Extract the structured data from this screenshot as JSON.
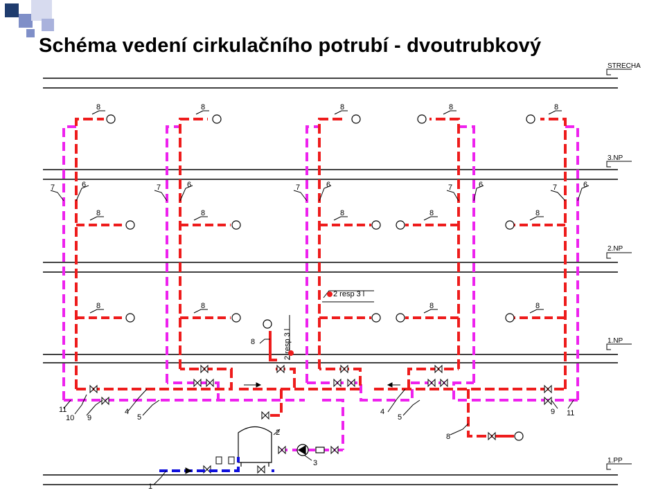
{
  "title": "Schéma vedení cirkulačního potrubí - dvoutrubkový",
  "colors": {
    "hot_water": "#ee1c1c",
    "circulation": "#ee22ee",
    "cold_water": "#1010dd",
    "structure": "#000000",
    "accent_squares": [
      "#1f3c6e",
      "#7f8fc8",
      "#c8cde8"
    ]
  },
  "floors": {
    "roof": "STRECHA",
    "f3": "3.NP",
    "f2": "2.NP",
    "f1": "1.NP",
    "basement": "1.PP"
  },
  "labels": {
    "tap": "8",
    "riser": "6",
    "circ_riser": "7",
    "main_l_1": "4",
    "main_l_2": "5",
    "main_r_1": "4",
    "main_r_2": "5",
    "n9_left": "9",
    "n9_right": "9",
    "n10": "10",
    "n11_left": "11",
    "n11_right": "11",
    "heater": "2",
    "pump": "3",
    "cold_supply": "1",
    "flow_note": "2 resp 3 l"
  }
}
